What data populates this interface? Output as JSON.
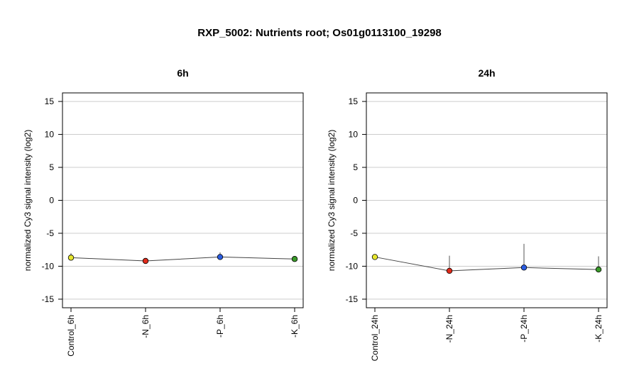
{
  "figure": {
    "title": "RXP_5002: Nutrients root; Os01g0113100_19298"
  },
  "chart_data": [
    {
      "type": "line",
      "title": "6h",
      "xlabel": "",
      "ylabel": "normalized Cy3 signal intensity (log2)",
      "ylim": [
        -16.3,
        16.3
      ],
      "yticks": [
        -15,
        -10,
        -5,
        0,
        5,
        10,
        15
      ],
      "grid": true,
      "categories": [
        "Control_6h",
        "-N_6h",
        "-P_6h",
        "-K_6h"
      ],
      "values": [
        -8.7,
        -9.2,
        -8.6,
        -8.9
      ],
      "error_low": [
        -9.1,
        -9.4,
        -9.0,
        -9.2
      ],
      "error_high": [
        -8.0,
        -9.0,
        -7.9,
        -8.6
      ],
      "point_colors": [
        "#e6e62e",
        "#e02a1a",
        "#2a5ce0",
        "#3a9a2a"
      ]
    },
    {
      "type": "line",
      "title": "24h",
      "xlabel": "",
      "ylabel": "normalized Cy3 signal intensity (log2)",
      "ylim": [
        -16.3,
        16.3
      ],
      "yticks": [
        -15,
        -10,
        -5,
        0,
        5,
        10,
        15
      ],
      "grid": true,
      "categories": [
        "Control_24h",
        "-N_24h",
        "-P_24h",
        "-K_24h"
      ],
      "values": [
        -8.6,
        -10.7,
        -10.2,
        -10.5
      ],
      "error_low": [
        -8.8,
        -10.8,
        -10.4,
        -10.6
      ],
      "error_high": [
        -8.4,
        -8.4,
        -6.6,
        -8.5
      ],
      "point_colors": [
        "#e6e62e",
        "#e02a1a",
        "#2a5ce0",
        "#3a9a2a"
      ]
    }
  ]
}
